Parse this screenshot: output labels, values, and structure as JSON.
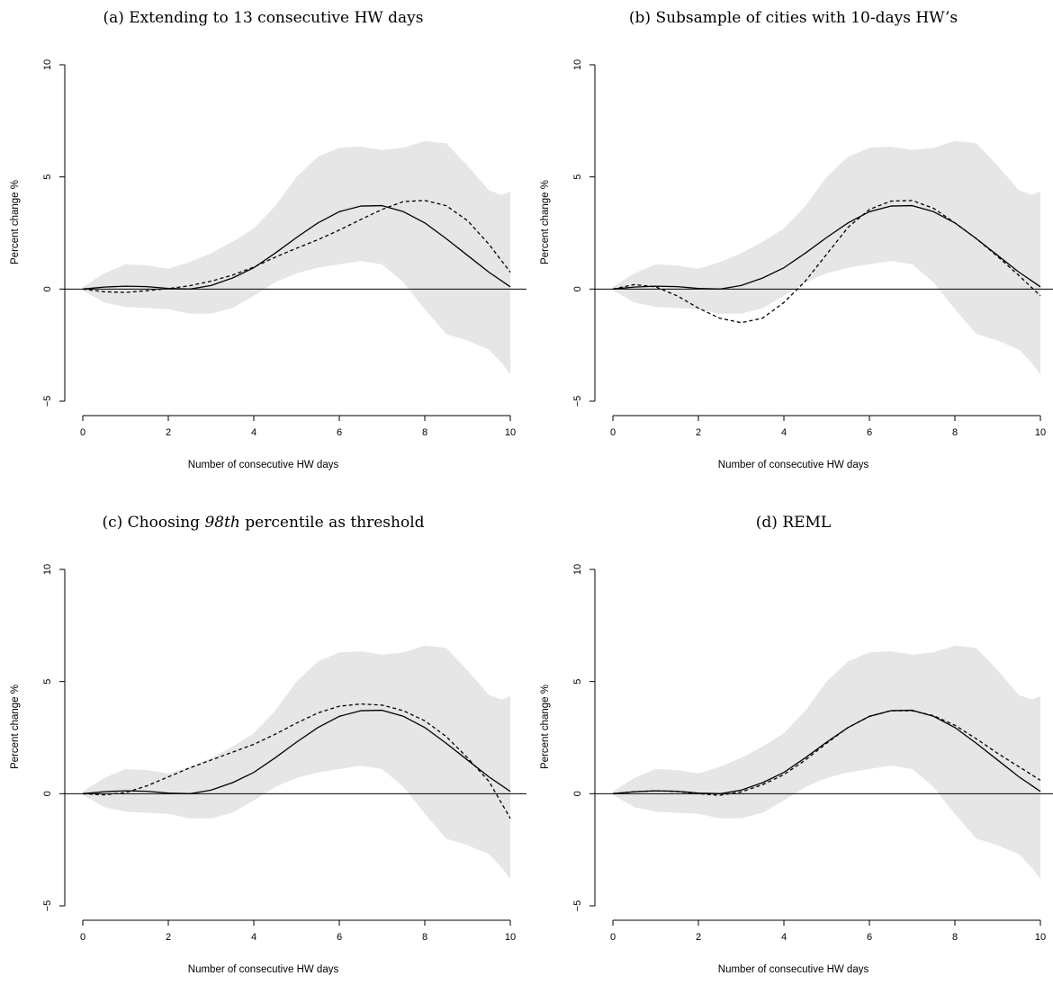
{
  "chart_data": [
    {
      "type": "line",
      "title_prefix": "(a) Extending to 13 consecutive HW days",
      "title_italic": "",
      "title_suffix": "",
      "xlabel": "Number of consecutive HW days",
      "ylabel": "Percent change %",
      "xlim": [
        0,
        10
      ],
      "ylim": [
        -5,
        10
      ],
      "xticks": [
        0,
        2,
        4,
        6,
        8,
        10
      ],
      "yticks": [
        -5,
        0,
        5,
        10
      ],
      "reference_line": 0,
      "band": {
        "x": [
          0,
          0.5,
          1,
          1.5,
          2,
          2.5,
          3,
          3.5,
          4,
          4.5,
          5,
          5.5,
          6,
          6.5,
          7,
          7.5,
          8,
          8.5,
          9,
          9.5,
          9.8,
          10
        ],
        "upper": [
          0.1,
          0.7,
          1.1,
          1.05,
          0.9,
          1.2,
          1.6,
          2.1,
          2.7,
          3.7,
          5.0,
          5.9,
          6.3,
          6.35,
          6.2,
          6.3,
          6.6,
          6.5,
          5.5,
          4.4,
          4.2,
          4.35
        ],
        "lower": [
          -0.05,
          -0.6,
          -0.8,
          -0.85,
          -0.9,
          -1.1,
          -1.1,
          -0.85,
          -0.3,
          0.3,
          0.7,
          0.95,
          1.1,
          1.25,
          1.1,
          0.3,
          -0.9,
          -2.0,
          -2.3,
          -2.7,
          -3.3,
          -3.8
        ]
      },
      "series": [
        {
          "style": "solid",
          "x": [
            0,
            0.5,
            1,
            1.5,
            2,
            2.5,
            3,
            3.5,
            4,
            4.5,
            5,
            5.5,
            6,
            6.5,
            7,
            7.5,
            8,
            8.5,
            9,
            9.5,
            10
          ],
          "y": [
            0,
            0.09,
            0.13,
            0.11,
            0.03,
            0.0,
            0.16,
            0.49,
            0.95,
            1.6,
            2.3,
            2.95,
            3.45,
            3.7,
            3.72,
            3.45,
            2.95,
            2.25,
            1.5,
            0.75,
            0.1
          ]
        },
        {
          "style": "dashed",
          "x": [
            0,
            0.5,
            1,
            1.5,
            2,
            2.5,
            3,
            3.5,
            4,
            4.5,
            5,
            5.5,
            6,
            6.5,
            7,
            7.5,
            8,
            8.5,
            9,
            9.5,
            10
          ],
          "y": [
            0,
            -0.12,
            -0.15,
            -0.07,
            0.02,
            0.15,
            0.35,
            0.62,
            0.98,
            1.42,
            1.82,
            2.2,
            2.63,
            3.1,
            3.55,
            3.9,
            3.95,
            3.72,
            3.05,
            2.0,
            0.75
          ]
        }
      ]
    },
    {
      "type": "line",
      "title_prefix": "(b) Subsample of cities with 10-days HW’s",
      "title_italic": "",
      "title_suffix": "",
      "xlabel": "Number of consecutive HW days",
      "ylabel": "Percent change %",
      "xlim": [
        0,
        10
      ],
      "ylim": [
        -5,
        10
      ],
      "xticks": [
        0,
        2,
        4,
        6,
        8,
        10
      ],
      "yticks": [
        -5,
        0,
        5,
        10
      ],
      "reference_line": 0,
      "band": {
        "x": [
          0,
          0.5,
          1,
          1.5,
          2,
          2.5,
          3,
          3.5,
          4,
          4.5,
          5,
          5.5,
          6,
          6.5,
          7,
          7.5,
          8,
          8.5,
          9,
          9.5,
          9.8,
          10
        ],
        "upper": [
          0.1,
          0.7,
          1.1,
          1.05,
          0.9,
          1.2,
          1.6,
          2.1,
          2.7,
          3.7,
          5.0,
          5.9,
          6.3,
          6.35,
          6.2,
          6.3,
          6.6,
          6.5,
          5.5,
          4.4,
          4.2,
          4.35
        ],
        "lower": [
          -0.05,
          -0.6,
          -0.8,
          -0.85,
          -0.9,
          -1.1,
          -1.1,
          -0.85,
          -0.3,
          0.3,
          0.7,
          0.95,
          1.1,
          1.25,
          1.1,
          0.3,
          -0.9,
          -2.0,
          -2.3,
          -2.7,
          -3.3,
          -3.8
        ]
      },
      "series": [
        {
          "style": "solid",
          "x": [
            0,
            0.5,
            1,
            1.5,
            2,
            2.5,
            3,
            3.5,
            4,
            4.5,
            5,
            5.5,
            6,
            6.5,
            7,
            7.5,
            8,
            8.5,
            9,
            9.5,
            10
          ],
          "y": [
            0,
            0.09,
            0.13,
            0.11,
            0.03,
            0.0,
            0.16,
            0.49,
            0.95,
            1.6,
            2.3,
            2.95,
            3.45,
            3.7,
            3.72,
            3.45,
            2.95,
            2.25,
            1.5,
            0.75,
            0.1
          ]
        },
        {
          "style": "dashed",
          "x": [
            0,
            0.5,
            1,
            1.5,
            2,
            2.5,
            3,
            3.5,
            4,
            4.5,
            5,
            5.5,
            6,
            6.5,
            7,
            7.5,
            8,
            8.5,
            9,
            9.5,
            10
          ],
          "y": [
            0,
            0.2,
            0.1,
            -0.3,
            -0.85,
            -1.3,
            -1.5,
            -1.3,
            -0.6,
            0.35,
            1.55,
            2.75,
            3.55,
            3.92,
            3.95,
            3.6,
            2.95,
            2.25,
            1.45,
            0.6,
            -0.3
          ]
        }
      ]
    },
    {
      "type": "line",
      "title_prefix": "(c) Choosing ",
      "title_italic": "98th",
      "title_suffix": " percentile as threshold",
      "xlabel": "Number of consecutive HW days",
      "ylabel": "Percent change %",
      "xlim": [
        0,
        10
      ],
      "ylim": [
        -5,
        10
      ],
      "xticks": [
        0,
        2,
        4,
        6,
        8,
        10
      ],
      "yticks": [
        -5,
        0,
        5,
        10
      ],
      "reference_line": 0,
      "band": {
        "x": [
          0,
          0.5,
          1,
          1.5,
          2,
          2.5,
          3,
          3.5,
          4,
          4.5,
          5,
          5.5,
          6,
          6.5,
          7,
          7.5,
          8,
          8.5,
          9,
          9.5,
          9.8,
          10
        ],
        "upper": [
          0.1,
          0.7,
          1.1,
          1.05,
          0.9,
          1.2,
          1.6,
          2.1,
          2.7,
          3.7,
          5.0,
          5.9,
          6.3,
          6.35,
          6.2,
          6.3,
          6.6,
          6.5,
          5.5,
          4.4,
          4.2,
          4.35
        ],
        "lower": [
          -0.05,
          -0.6,
          -0.8,
          -0.85,
          -0.9,
          -1.1,
          -1.1,
          -0.85,
          -0.3,
          0.3,
          0.7,
          0.95,
          1.1,
          1.25,
          1.1,
          0.3,
          -0.9,
          -2.0,
          -2.3,
          -2.7,
          -3.3,
          -3.8
        ]
      },
      "series": [
        {
          "style": "solid",
          "x": [
            0,
            0.5,
            1,
            1.5,
            2,
            2.5,
            3,
            3.5,
            4,
            4.5,
            5,
            5.5,
            6,
            6.5,
            7,
            7.5,
            8,
            8.5,
            9,
            9.5,
            10
          ],
          "y": [
            0,
            0.09,
            0.13,
            0.11,
            0.03,
            0.0,
            0.16,
            0.49,
            0.95,
            1.6,
            2.3,
            2.95,
            3.45,
            3.7,
            3.72,
            3.45,
            2.95,
            2.25,
            1.5,
            0.75,
            0.1
          ]
        },
        {
          "style": "dashed",
          "x": [
            0,
            0.5,
            1,
            1.5,
            2,
            2.5,
            3,
            3.5,
            4,
            4.5,
            5,
            5.5,
            6,
            6.5,
            7,
            7.5,
            8,
            8.5,
            9,
            9.5,
            10
          ],
          "y": [
            0,
            -0.05,
            0.05,
            0.35,
            0.75,
            1.15,
            1.5,
            1.85,
            2.2,
            2.65,
            3.15,
            3.6,
            3.9,
            4.0,
            3.95,
            3.7,
            3.25,
            2.55,
            1.6,
            0.55,
            -1.1
          ]
        }
      ]
    },
    {
      "type": "line",
      "title_prefix": "(d) REML",
      "title_italic": "",
      "title_suffix": "",
      "xlabel": "Number of consecutive HW days",
      "ylabel": "Percent change %",
      "xlim": [
        0,
        10
      ],
      "ylim": [
        -5,
        10
      ],
      "xticks": [
        0,
        2,
        4,
        6,
        8,
        10
      ],
      "yticks": [
        -5,
        0,
        5,
        10
      ],
      "reference_line": 0,
      "band": {
        "x": [
          0,
          0.5,
          1,
          1.5,
          2,
          2.5,
          3,
          3.5,
          4,
          4.5,
          5,
          5.5,
          6,
          6.5,
          7,
          7.5,
          8,
          8.5,
          9,
          9.5,
          9.8,
          10
        ],
        "upper": [
          0.1,
          0.7,
          1.1,
          1.05,
          0.9,
          1.2,
          1.6,
          2.1,
          2.7,
          3.7,
          5.0,
          5.9,
          6.3,
          6.35,
          6.2,
          6.3,
          6.6,
          6.5,
          5.5,
          4.4,
          4.2,
          4.35
        ],
        "lower": [
          -0.05,
          -0.6,
          -0.8,
          -0.85,
          -0.9,
          -1.1,
          -1.1,
          -0.85,
          -0.3,
          0.3,
          0.7,
          0.95,
          1.1,
          1.25,
          1.1,
          0.3,
          -0.9,
          -2.0,
          -2.3,
          -2.7,
          -3.3,
          -3.8
        ]
      },
      "series": [
        {
          "style": "solid",
          "x": [
            0,
            0.5,
            1,
            1.5,
            2,
            2.5,
            3,
            3.5,
            4,
            4.5,
            5,
            5.5,
            6,
            6.5,
            7,
            7.5,
            8,
            8.5,
            9,
            9.5,
            10
          ],
          "y": [
            0,
            0.09,
            0.13,
            0.11,
            0.03,
            0.0,
            0.16,
            0.49,
            0.95,
            1.6,
            2.3,
            2.95,
            3.45,
            3.7,
            3.72,
            3.45,
            2.95,
            2.25,
            1.5,
            0.75,
            0.1
          ]
        },
        {
          "style": "dashed",
          "x": [
            0,
            0.5,
            1,
            1.5,
            2,
            2.5,
            3,
            3.5,
            4,
            4.5,
            5,
            5.5,
            6,
            6.5,
            7,
            7.5,
            8,
            8.5,
            9,
            9.5,
            10
          ],
          "y": [
            0,
            0.09,
            0.13,
            0.1,
            0.0,
            -0.07,
            0.08,
            0.4,
            0.85,
            1.5,
            2.25,
            2.95,
            3.45,
            3.7,
            3.7,
            3.48,
            3.05,
            2.45,
            1.8,
            1.2,
            0.6
          ]
        }
      ]
    }
  ],
  "colors": {
    "band": "#e6e6e6",
    "lines": "#000000",
    "background": "#ffffff"
  }
}
